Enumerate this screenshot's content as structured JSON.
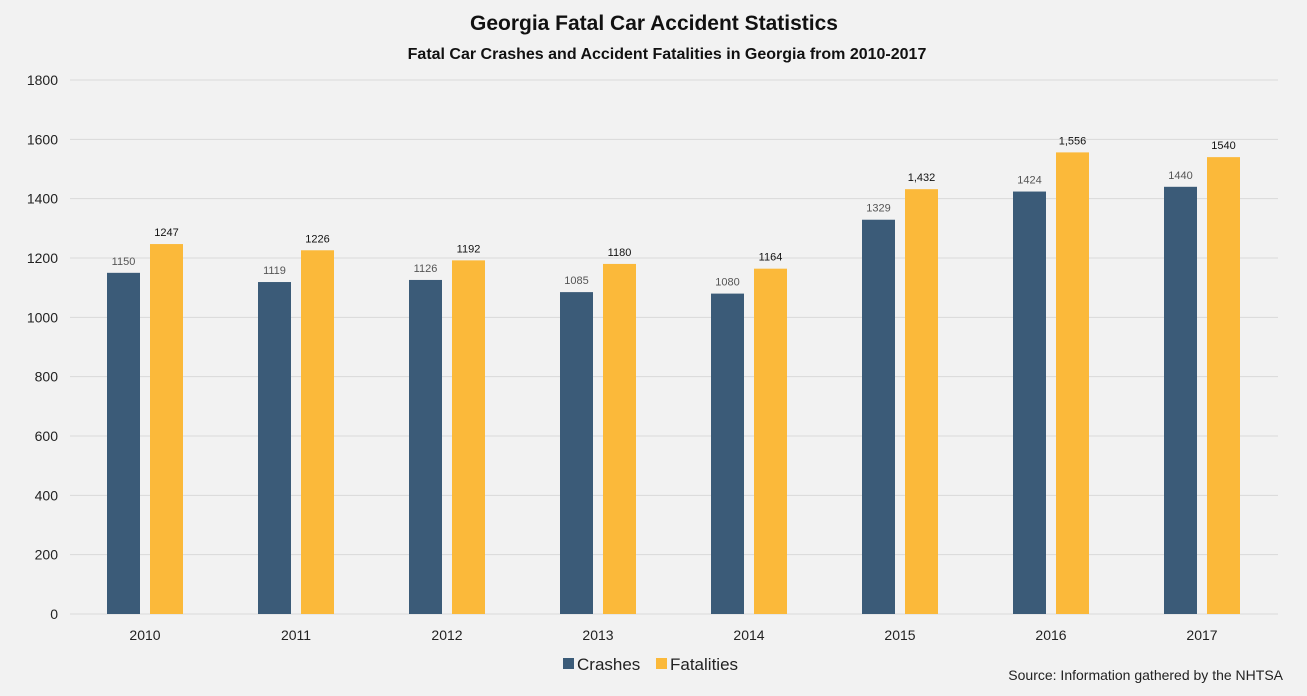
{
  "chart_data": {
    "type": "bar",
    "title": "Georgia Fatal Car Accident Statistics",
    "subtitle": "Fatal Car Crashes and Accident Fatalities in Georgia from 2010-2017",
    "categories": [
      "2010",
      "2011",
      "2012",
      "2013",
      "2014",
      "2015",
      "2016",
      "2017"
    ],
    "series": [
      {
        "name": "Crashes",
        "color": "#3b5b78",
        "values": [
          1150,
          1119,
          1126,
          1085,
          1080,
          1329,
          1424,
          1440
        ],
        "labels": [
          "1150",
          "1119",
          "1126",
          "1085",
          "1080",
          "1329",
          "1424",
          "1440"
        ]
      },
      {
        "name": "Fatalities",
        "color": "#fbb93a",
        "values": [
          1247,
          1226,
          1192,
          1180,
          1164,
          1432,
          1556,
          1540
        ],
        "labels": [
          "1247",
          "1226",
          "1192",
          "1180",
          "1164",
          "1,432",
          "1,556",
          "1540"
        ]
      }
    ],
    "ylim": [
      0,
      1800
    ],
    "yticks": [
      "0",
      "200",
      "400",
      "600",
      "800",
      "1000",
      "1200",
      "1400",
      "1600",
      "1800"
    ],
    "grid": true,
    "legend": "bottom-center",
    "source": "Source: Information gathered by the NHTSA"
  }
}
